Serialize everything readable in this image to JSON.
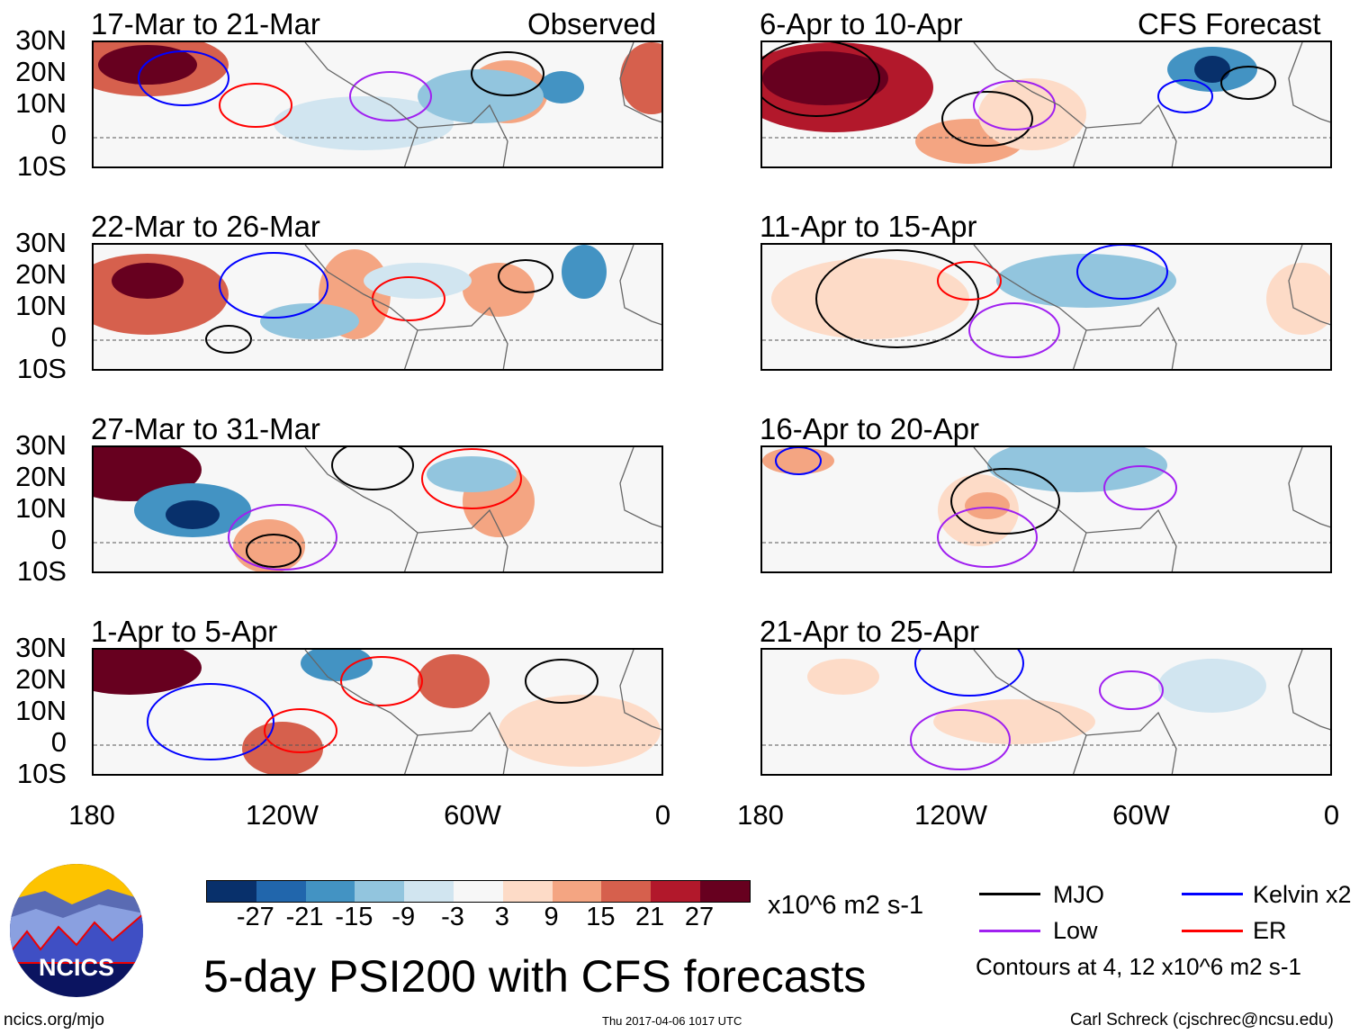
{
  "header": {
    "left_label": "Observed",
    "right_label": "CFS Forecast"
  },
  "panels": {
    "observed": [
      "17-Mar to 21-Mar",
      "22-Mar to 26-Mar",
      "27-Mar to 31-Mar",
      "1-Apr to 5-Apr"
    ],
    "forecast": [
      "6-Apr to 10-Apr",
      "11-Apr to 15-Apr",
      "16-Apr to 20-Apr",
      "21-Apr to 25-Apr"
    ]
  },
  "lat_labels": [
    "30N",
    "20N",
    "10N",
    "0",
    "10S"
  ],
  "lon_labels": [
    "180",
    "120W",
    "60W",
    "0"
  ],
  "colorbar": {
    "colors": [
      "#08306b",
      "#2166ac",
      "#4393c3",
      "#92c5de",
      "#d1e5f0",
      "#f7f7f7",
      "#fddbc7",
      "#f4a582",
      "#d6604d",
      "#b2182b",
      "#67001f"
    ],
    "labels": [
      "-27",
      "-21",
      "-15",
      "-9",
      "-3",
      "3",
      "9",
      "15",
      "21",
      "27"
    ],
    "units": "x10^6 m2 s-1"
  },
  "legend": {
    "items": [
      {
        "label": "MJO",
        "color": "#000000"
      },
      {
        "label": "Kelvin x2",
        "color": "#0000ff"
      },
      {
        "label": "Low",
        "color": "#a020f0"
      },
      {
        "label": "ER",
        "color": "#ff0000"
      }
    ],
    "note": "Contours at 4, 12 x10^6 m2 s-1"
  },
  "title": "5-day PSI200 with CFS forecasts",
  "footer": {
    "url": "ncics.org/mjo",
    "timestamp": "Thu 2017-04-06 1017 UTC",
    "credit": "Carl Schreck (cjschrec@ncsu.edu)"
  },
  "logo": {
    "text": "NCICS"
  }
}
